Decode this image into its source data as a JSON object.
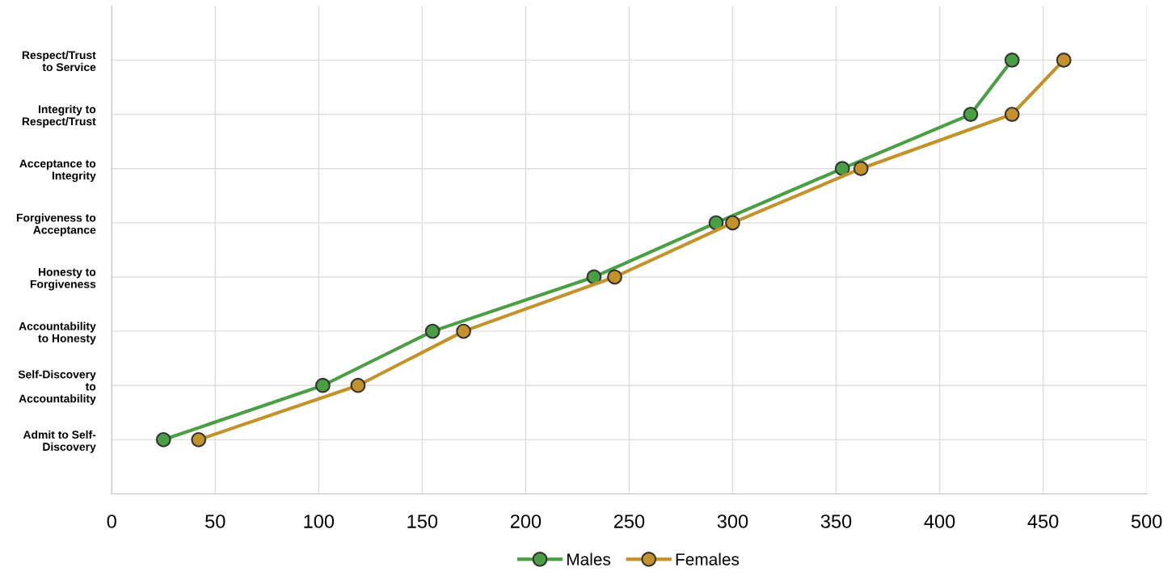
{
  "chart_data": {
    "type": "line",
    "orientation": "horizontal",
    "categories": [
      "Respect/Trust\nto Service",
      "Integrity to\nRespect/Trust",
      "Acceptance to\nIntegrity",
      "Forgiveness to\nAcceptance",
      "Honesty to\nForgiveness",
      "Accountability\nto Honesty",
      "Self-Discovery\nto\nAccountability",
      "Admit to Self-\nDiscovery"
    ],
    "series": [
      {
        "name": "Males",
        "color": "#4a9e44",
        "values": [
          435,
          415,
          353,
          292,
          233,
          155,
          102,
          25
        ]
      },
      {
        "name": "Females",
        "color": "#c4922a",
        "values": [
          460,
          435,
          362,
          300,
          243,
          170,
          119,
          42
        ]
      }
    ],
    "xlim": [
      0,
      500
    ],
    "xticks": [
      0,
      50,
      100,
      150,
      200,
      250,
      300,
      350,
      400,
      450,
      500
    ],
    "grid": true,
    "legend": "bottom",
    "marker": "circle",
    "line_style": "solid"
  }
}
